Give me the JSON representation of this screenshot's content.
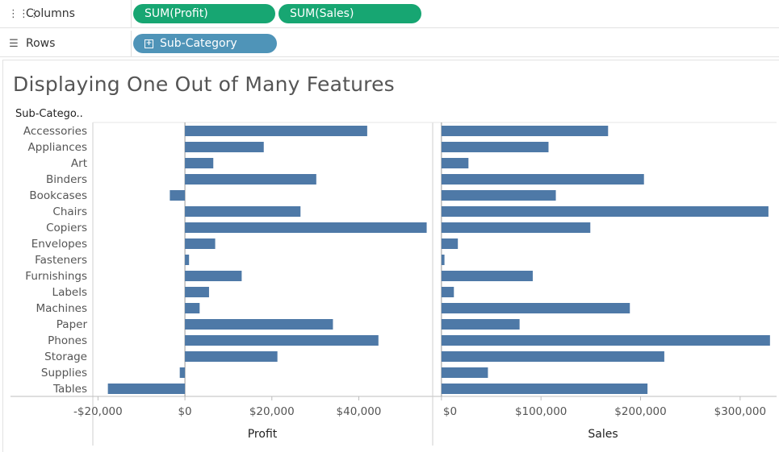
{
  "shelves": {
    "columns": {
      "label": "Columns",
      "icon": "columns-icon",
      "pills": [
        "SUM(Profit)",
        "SUM(Sales)"
      ]
    },
    "rows": {
      "label": "Rows",
      "icon": "rows-icon",
      "pills": [
        "Sub-Category"
      ]
    }
  },
  "view": {
    "title": "Displaying One Out of Many Features",
    "row_header": "Sub-Catego.."
  },
  "colors": {
    "bar": "#4e79a7",
    "pill_green": "#17a672",
    "pill_blue": "#4f94b8"
  },
  "chart_data": [
    {
      "type": "bar",
      "orientation": "horizontal",
      "title": "",
      "xlabel": "Profit",
      "ylabel": "Sub-Category",
      "categories": [
        "Accessories",
        "Appliances",
        "Art",
        "Binders",
        "Bookcases",
        "Chairs",
        "Copiers",
        "Envelopes",
        "Fasteners",
        "Furnishings",
        "Labels",
        "Machines",
        "Paper",
        "Phones",
        "Storage",
        "Supplies",
        "Tables"
      ],
      "values": [
        41937,
        18138,
        6528,
        30222,
        -3473,
        26590,
        55618,
        6964,
        950,
        13059,
        5546,
        3385,
        34054,
        44516,
        21279,
        -1189,
        -17725
      ],
      "xlim": [
        -21000,
        57000
      ],
      "ticks": [
        -20000,
        0,
        20000,
        40000
      ],
      "tick_labels": [
        "-$20,000",
        "$0",
        "$20,000",
        "$40,000"
      ]
    },
    {
      "type": "bar",
      "orientation": "horizontal",
      "title": "",
      "xlabel": "Sales",
      "ylabel": "Sub-Category",
      "categories": [
        "Accessories",
        "Appliances",
        "Art",
        "Binders",
        "Bookcases",
        "Chairs",
        "Copiers",
        "Envelopes",
        "Fasteners",
        "Furnishings",
        "Labels",
        "Machines",
        "Paper",
        "Phones",
        "Storage",
        "Supplies",
        "Tables"
      ],
      "values": [
        167380,
        107532,
        27119,
        203413,
        114880,
        328449,
        149528,
        16476,
        3024,
        91705,
        12486,
        189239,
        78479,
        330007,
        223844,
        46674,
        206966
      ],
      "xlim": [
        -8000,
        335000
      ],
      "ticks": [
        0,
        100000,
        200000,
        300000
      ],
      "tick_labels": [
        "$0",
        "$100,000",
        "$200,000",
        "$300,000"
      ]
    }
  ]
}
